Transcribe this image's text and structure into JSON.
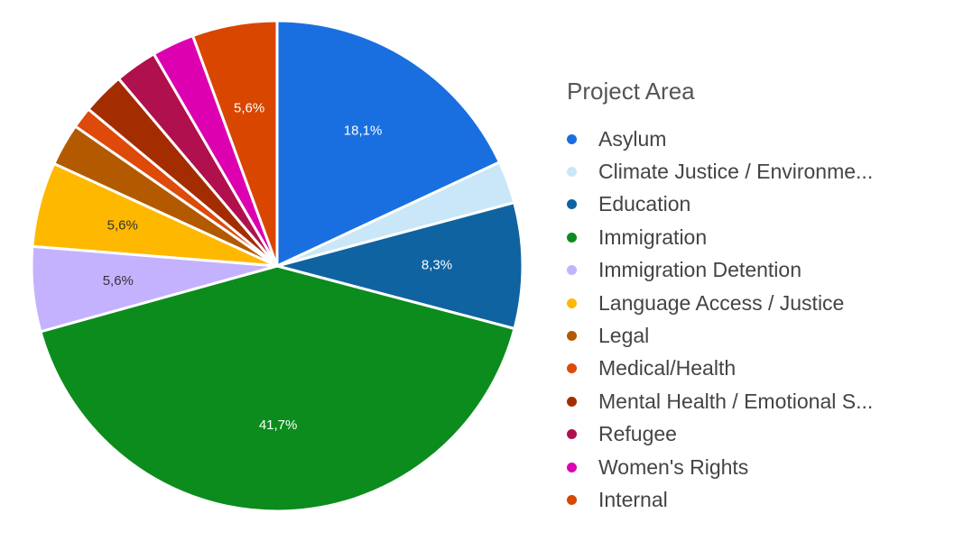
{
  "chart_data": {
    "type": "pie",
    "title": "",
    "legend_title": "Project Area",
    "legend_position": "right",
    "categories": [
      "Asylum",
      "Climate Justice / Environme...",
      "Education",
      "Immigration",
      "Immigration Detention",
      "Language Access / Justice",
      "Legal",
      "Medical/Health",
      "Mental Health / Emotional S...",
      "Refugee",
      "Women's Rights",
      "Internal"
    ],
    "values": [
      18.1,
      2.8,
      8.3,
      41.7,
      5.6,
      5.6,
      2.8,
      1.4,
      2.8,
      2.8,
      2.8,
      5.6
    ],
    "labels": [
      "18,1%",
      "",
      "8,3%",
      "41,7%",
      "5,6%",
      "5,6%",
      "",
      "",
      "",
      "",
      "",
      "5,6%"
    ],
    "colors": [
      "#1a6fe0",
      "#c9e7f8",
      "#0f63a1",
      "#0b8c1d",
      "#c4b2ff",
      "#ffb800",
      "#b35a00",
      "#dd4a0a",
      "#a32d00",
      "#b0104e",
      "#dd00b0",
      "#d94600"
    ]
  }
}
